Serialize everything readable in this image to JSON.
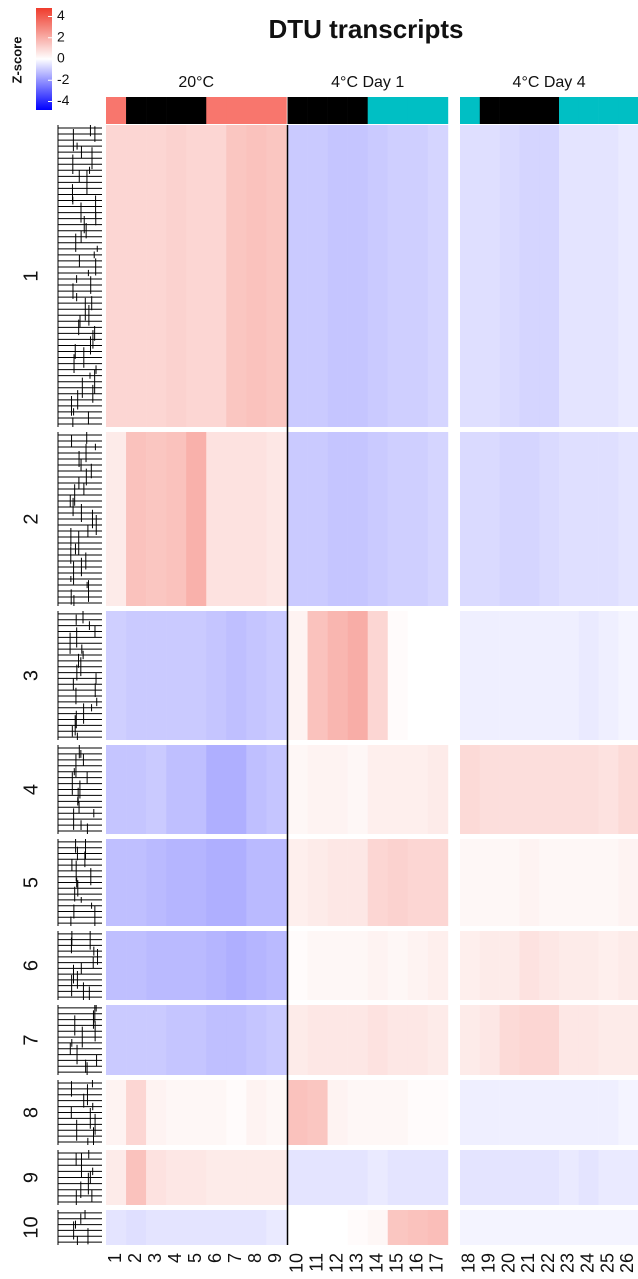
{
  "chart_data": {
    "type": "heatmap",
    "title": "DTU transcripts",
    "colorbar": {
      "label": "Z-score",
      "ticks": [
        4,
        2,
        0,
        -2,
        -4
      ],
      "lim": [
        -4.8,
        4.8
      ],
      "low_color": "#0000ff",
      "mid_color": "#ffffff",
      "high_color": "#ef3b2c"
    },
    "groups": [
      {
        "name": "20°C",
        "columns": [
          0,
          8
        ]
      },
      {
        "name": "4°C Day 1",
        "columns": [
          9,
          16
        ]
      },
      {
        "name": "4°C Day 4",
        "columns": [
          17,
          25
        ]
      }
    ],
    "columns": [
      "1",
      "2",
      "3",
      "4",
      "5",
      "6",
      "7",
      "8",
      "9",
      "10",
      "11",
      "12",
      "13",
      "14",
      "15",
      "16",
      "17",
      "18",
      "19",
      "20",
      "21",
      "22",
      "23",
      "24",
      "25",
      "26"
    ],
    "annotation_colors": [
      "#f8766d",
      "#000000",
      "#000000",
      "#000000",
      "#000000",
      "#f8766d",
      "#f8766d",
      "#f8766d",
      "#f8766d",
      "#000000",
      "#000000",
      "#000000",
      "#000000",
      "#00bfc4",
      "#00bfc4",
      "#00bfc4",
      "#00bfc4",
      "#00bfc4",
      "#000000",
      "#000000",
      "#000000",
      "#000000",
      "#00bfc4",
      "#00bfc4",
      "#00bfc4",
      "#00bfc4"
    ],
    "rows": [
      "1",
      "2",
      "3",
      "4",
      "5",
      "6",
      "7",
      "8",
      "9",
      "10"
    ],
    "values": [
      [
        1.0,
        1.0,
        1.0,
        1.1,
        1.0,
        1.0,
        1.4,
        1.5,
        1.4,
        -1.0,
        -1.0,
        -1.1,
        -1.1,
        -1.0,
        -0.9,
        -0.9,
        -0.8,
        -0.6,
        -0.6,
        -0.7,
        -0.8,
        -0.8,
        -0.5,
        -0.5,
        -0.5,
        -0.4
      ],
      [
        0.5,
        1.5,
        1.4,
        1.5,
        1.9,
        0.7,
        0.7,
        0.7,
        0.6,
        -1.0,
        -1.0,
        -1.1,
        -1.1,
        -1.0,
        -0.9,
        -0.9,
        -0.8,
        -0.7,
        -0.7,
        -0.8,
        -0.8,
        -0.7,
        -0.6,
        -0.6,
        -0.6,
        -0.5
      ],
      [
        -0.9,
        -1.0,
        -1.0,
        -1.0,
        -1.0,
        -1.1,
        -1.2,
        -1.1,
        -1.0,
        0.3,
        1.5,
        1.8,
        2.0,
        1.0,
        0.1,
        0.0,
        0.0,
        -0.3,
        -0.3,
        -0.3,
        -0.3,
        -0.3,
        -0.3,
        -0.4,
        -0.3,
        -0.2
      ],
      [
        -1.1,
        -1.1,
        -1.0,
        -1.2,
        -1.2,
        -1.5,
        -1.5,
        -1.2,
        -1.1,
        0.2,
        0.3,
        0.3,
        0.2,
        0.4,
        0.4,
        0.4,
        0.5,
        0.9,
        0.8,
        0.8,
        0.8,
        0.8,
        0.8,
        0.8,
        0.7,
        0.9
      ],
      [
        -1.2,
        -1.2,
        -1.3,
        -1.4,
        -1.4,
        -1.5,
        -1.5,
        -1.3,
        -1.3,
        0.4,
        0.5,
        0.6,
        0.6,
        1.0,
        1.1,
        1.0,
        1.0,
        0.2,
        0.2,
        0.2,
        0.3,
        0.2,
        0.2,
        0.2,
        0.2,
        0.3
      ],
      [
        -1.2,
        -1.2,
        -1.3,
        -1.3,
        -1.3,
        -1.4,
        -1.5,
        -1.4,
        -1.3,
        0.1,
        0.2,
        0.2,
        0.2,
        0.3,
        0.2,
        0.3,
        0.4,
        0.4,
        0.5,
        0.5,
        0.7,
        0.6,
        0.5,
        0.5,
        0.4,
        0.5
      ],
      [
        -1.0,
        -1.0,
        -1.0,
        -1.1,
        -1.1,
        -1.2,
        -1.2,
        -1.1,
        -1.0,
        0.5,
        0.6,
        0.6,
        0.6,
        0.7,
        0.6,
        0.6,
        0.5,
        0.5,
        0.6,
        0.9,
        1.0,
        1.0,
        0.6,
        0.6,
        0.5,
        0.5
      ],
      [
        0.3,
        1.0,
        0.3,
        0.2,
        0.2,
        0.2,
        0.1,
        0.3,
        0.2,
        1.5,
        1.4,
        0.3,
        0.2,
        0.2,
        0.2,
        0.1,
        0.1,
        -0.3,
        -0.3,
        -0.3,
        -0.3,
        -0.3,
        -0.3,
        -0.3,
        -0.3,
        -0.2
      ],
      [
        0.5,
        1.5,
        0.7,
        0.6,
        0.6,
        0.5,
        0.5,
        0.5,
        0.5,
        -0.5,
        -0.5,
        -0.5,
        -0.5,
        -0.4,
        -0.5,
        -0.5,
        -0.5,
        -0.5,
        -0.5,
        -0.5,
        -0.5,
        -0.5,
        -0.4,
        -0.5,
        -0.4,
        -0.4
      ],
      [
        -0.5,
        -0.6,
        -0.5,
        -0.5,
        -0.5,
        -0.5,
        -0.5,
        -0.5,
        -0.4,
        0.0,
        0.0,
        0.0,
        0.1,
        0.2,
        1.4,
        1.5,
        1.6,
        -0.2,
        -0.2,
        -0.2,
        -0.2,
        -0.2,
        -0.2,
        -0.2,
        -0.2,
        -0.2
      ]
    ]
  }
}
